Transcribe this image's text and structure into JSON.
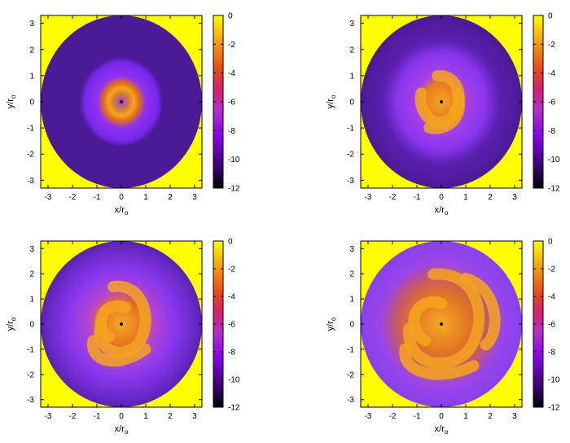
{
  "chart_data": [
    {
      "type": "heatmap",
      "xlabel": "x/r",
      "xlabel_sub": "o",
      "ylabel": "y/r",
      "ylabel_sub": "o",
      "xlim": [
        -3.3,
        3.3
      ],
      "ylim": [
        -3.3,
        3.3
      ],
      "xticks": [
        "-3",
        "-2",
        "-1",
        "0",
        "1",
        "2",
        "3"
      ],
      "yticks": [
        "3",
        "2",
        "1",
        "0",
        "-1",
        "-2",
        "-3"
      ],
      "colorbar": {
        "range": [
          -12,
          0
        ],
        "ticks": [
          "0",
          "-2",
          "-4",
          "-6",
          "-8",
          "-10",
          "-12"
        ]
      },
      "disk_radius": 3.3,
      "pattern": "ring",
      "outside_color": "#ffff00"
    },
    {
      "type": "heatmap",
      "xlabel": "x/r",
      "xlabel_sub": "o",
      "ylabel": "y/r",
      "ylabel_sub": "o",
      "xlim": [
        -3.3,
        3.3
      ],
      "ylim": [
        -3.3,
        3.3
      ],
      "xticks": [
        "-3",
        "-2",
        "-1",
        "0",
        "1",
        "2",
        "3"
      ],
      "yticks": [
        "3",
        "2",
        "1",
        "0",
        "-1",
        "-2",
        "-3"
      ],
      "colorbar": {
        "range": [
          -12,
          0
        ],
        "ticks": [
          "0",
          "-2",
          "-4",
          "-6",
          "-8",
          "-10",
          "-12"
        ]
      },
      "disk_radius": 3.3,
      "pattern": "spiral-small",
      "outside_color": "#ffff00"
    },
    {
      "type": "heatmap",
      "xlabel": "x/r",
      "xlabel_sub": "o",
      "ylabel": "y/r",
      "ylabel_sub": "o",
      "xlim": [
        -3.3,
        3.3
      ],
      "ylim": [
        -3.3,
        3.3
      ],
      "xticks": [
        "-3",
        "-2",
        "-1",
        "0",
        "1",
        "2",
        "3"
      ],
      "yticks": [
        "3",
        "2",
        "1",
        "0",
        "-1",
        "-2",
        "-3"
      ],
      "colorbar": {
        "range": [
          -12,
          0
        ],
        "ticks": [
          "0",
          "-2",
          "-4",
          "-6",
          "-8",
          "-10",
          "-12"
        ]
      },
      "disk_radius": 3.3,
      "pattern": "spiral-medium",
      "outside_color": "#ffff00"
    },
    {
      "type": "heatmap",
      "xlabel": "x/r",
      "xlabel_sub": "o",
      "ylabel": "y/r",
      "ylabel_sub": "o",
      "xlim": [
        -3.3,
        3.3
      ],
      "ylim": [
        -3.3,
        3.3
      ],
      "xticks": [
        "-3",
        "-2",
        "-1",
        "0",
        "1",
        "2",
        "3"
      ],
      "yticks": [
        "3",
        "2",
        "1",
        "0",
        "-1",
        "-2",
        "-3"
      ],
      "colorbar": {
        "range": [
          -12,
          0
        ],
        "ticks": [
          "0",
          "-2",
          "-4",
          "-6",
          "-8",
          "-10",
          "-12"
        ]
      },
      "disk_radius": 3.3,
      "pattern": "spiral-large",
      "outside_color": "#ffff00"
    }
  ]
}
